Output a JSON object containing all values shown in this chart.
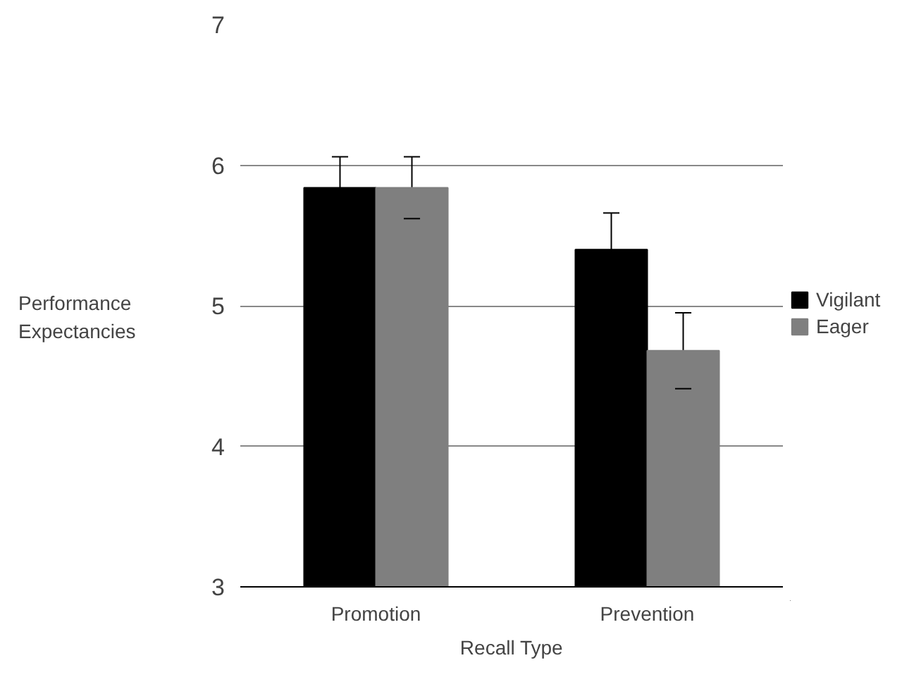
{
  "chart_data": {
    "type": "bar",
    "xlabel": "Recall Type",
    "ylabel": "Performance\nExpectancies",
    "categories": [
      "Promotion",
      "Prevention"
    ],
    "series": [
      {
        "name": "Vigilant",
        "color": "#000000",
        "values": [
          5.84,
          5.4
        ],
        "errors": [
          0.22,
          0.26
        ]
      },
      {
        "name": "Eager",
        "color": "#7f7f7f",
        "values": [
          5.84,
          4.68
        ],
        "errors": [
          0.22,
          0.27
        ]
      }
    ],
    "ylim": [
      3,
      7
    ],
    "yticks": [
      3,
      4,
      5,
      6,
      7
    ],
    "grid": "y",
    "legend": "right"
  }
}
